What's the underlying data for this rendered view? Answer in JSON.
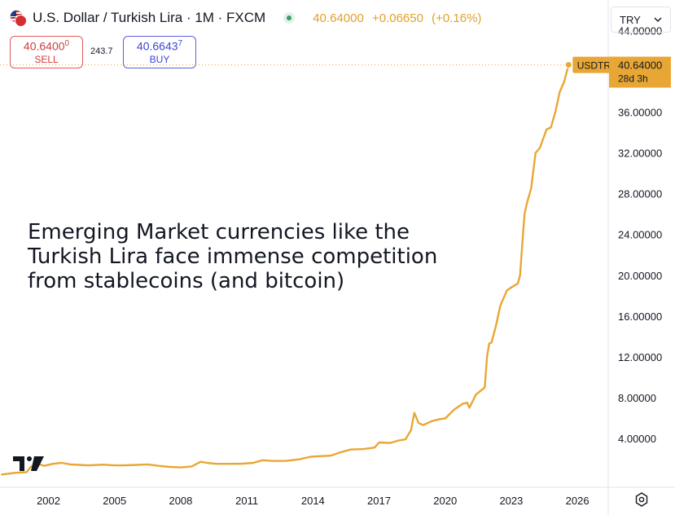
{
  "header": {
    "symbol_title": "U.S. Dollar / Turkish Lira · 1M · FXCM",
    "last_price": "40.64000",
    "change": "+0.06650",
    "change_pct": "(+0.16%)"
  },
  "trade": {
    "sell_price_main": "40.6400",
    "sell_price_sup": "0",
    "sell_label": "SELL",
    "spread": "243.7",
    "buy_price_main": "40.6643",
    "buy_price_sup": "7",
    "buy_label": "BUY"
  },
  "currency_selector": {
    "value": "TRY"
  },
  "annotation": {
    "text": "Emerging Market currencies like the Turkish Lira face immense competition from stablecoins (and bitcoin)"
  },
  "price_label": {
    "symbol": "USDTRY",
    "price": "40.64000",
    "countdown": "28d 3h"
  },
  "colors": {
    "line": "#e8a735",
    "label_bg": "#e8a735",
    "sell": "#d03c3c",
    "buy": "#3f44d4"
  },
  "icons": {
    "logo": "tradingview-logo-icon",
    "settings": "gear-icon",
    "currency_dropdown": "chevron-down-icon"
  },
  "chart_data": {
    "type": "line",
    "title": "",
    "xlabel": "",
    "ylabel": "",
    "xlim": [
      1999.8,
      2027.4
    ],
    "ylim": [
      -0.8,
      47.0
    ],
    "x_ticks": [
      2002,
      2005,
      2008,
      2011,
      2014,
      2017,
      2020,
      2023,
      2026
    ],
    "x_tick_labels": [
      "2002",
      "2005",
      "2008",
      "2011",
      "2014",
      "2017",
      "2020",
      "2023",
      "2026"
    ],
    "y_ticks": [
      4,
      8,
      12,
      16,
      20,
      24,
      28,
      32,
      36,
      44
    ],
    "y_tick_labels": [
      "4.00000",
      "8.00000",
      "12.00000",
      "16.00000",
      "20.00000",
      "24.00000",
      "28.00000",
      "32.00000",
      "36.00000",
      "44.00000"
    ],
    "grid": false,
    "series": [
      {
        "name": "USDTRY",
        "x": [
          1999.85,
          2000.5,
          2001.0,
          2001.2,
          2001.5,
          2001.8,
          2002.2,
          2002.6,
          2003.0,
          2003.4,
          2003.8,
          2004.5,
          2005.0,
          2005.5,
          2006.3,
          2006.5,
          2007.0,
          2007.5,
          2008.0,
          2008.5,
          2008.9,
          2009.2,
          2009.6,
          2010.3,
          2010.8,
          2011.3,
          2011.7,
          2012.2,
          2012.8,
          2013.4,
          2013.9,
          2014.3,
          2014.8,
          2015.2,
          2015.7,
          2016.3,
          2016.8,
          2017.0,
          2017.5,
          2017.9,
          2018.2,
          2018.45,
          2018.6,
          2018.8,
          2019.0,
          2019.4,
          2019.8,
          2020.0,
          2020.4,
          2020.8,
          2021.0,
          2021.1,
          2021.4,
          2021.8,
          2021.9,
          2022.0,
          2022.1,
          2022.3,
          2022.5,
          2022.8,
          2023.0,
          2023.3,
          2023.4,
          2023.5,
          2023.6,
          2023.7,
          2023.9,
          2024.1,
          2024.3,
          2024.6,
          2024.8,
          2025.0,
          2025.2,
          2025.4,
          2025.6
        ],
        "values": [
          0.45,
          0.62,
          0.68,
          1.2,
          1.55,
          1.3,
          1.5,
          1.6,
          1.45,
          1.4,
          1.35,
          1.42,
          1.35,
          1.36,
          1.42,
          1.45,
          1.3,
          1.2,
          1.15,
          1.25,
          1.7,
          1.6,
          1.5,
          1.5,
          1.52,
          1.6,
          1.85,
          1.78,
          1.79,
          1.95,
          2.2,
          2.25,
          2.3,
          2.6,
          2.9,
          2.95,
          3.1,
          3.6,
          3.55,
          3.8,
          3.9,
          4.8,
          6.5,
          5.5,
          5.3,
          5.7,
          5.9,
          5.95,
          6.8,
          7.4,
          7.5,
          7.0,
          8.3,
          9.0,
          12.0,
          13.3,
          13.4,
          15.0,
          17.0,
          18.5,
          18.8,
          19.2,
          20.0,
          23.0,
          26.0,
          27.0,
          28.5,
          32.0,
          32.5,
          34.3,
          34.5,
          36.0,
          38.0,
          39.0,
          40.64
        ]
      }
    ],
    "last_value": 40.64
  }
}
